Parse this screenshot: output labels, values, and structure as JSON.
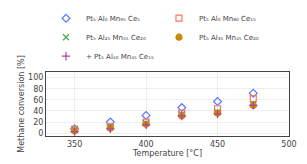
{
  "chart_data": {
    "type": "scatter",
    "xlabel": "Temperature [°C]",
    "ylabel": "Methane conversion [%]",
    "x": [
      350,
      375,
      400,
      425,
      450,
      475
    ],
    "xlim": [
      330,
      500
    ],
    "ylim": [
      -5,
      110
    ],
    "xticks": [
      350,
      400,
      450,
      500
    ],
    "yticks": [
      0,
      20,
      40,
      60,
      80,
      100
    ],
    "grid": true,
    "legend": "top",
    "series": [
      {
        "name": "Pt₅ Al₀ Mn₉₅ Ce₅",
        "color": "#5577ff",
        "marker": "diamond-open",
        "values": [
          8,
          20,
          32,
          46,
          57,
          72
        ]
      },
      {
        "name": "Pt₅ Al₀ Mn₈₀ Ce₁₅",
        "color": "#ff7755",
        "marker": "square-open",
        "values": [
          7,
          12,
          20,
          36,
          44,
          62
        ]
      },
      {
        "name": "Pt₅ Al₂₅ Mn₅₅ Ce₂₀",
        "color": "#44aa44",
        "marker": "x-thin-open",
        "values": [
          7,
          11,
          18,
          34,
          38,
          52
        ]
      },
      {
        "name": "Pt₅ Al₃₅ Mn₄₅ Ce₂₀",
        "color": "#cc8800",
        "marker": "circle",
        "values": [
          4,
          9,
          16,
          31,
          36,
          50
        ]
      },
      {
        "name": "+ Pt₅ Al₄₀ Mn₄₅ Ce₁₅",
        "color": "#aa44aa",
        "marker": "cross-thin-open",
        "values": [
          3,
          8,
          15,
          31,
          35,
          50
        ]
      }
    ]
  }
}
